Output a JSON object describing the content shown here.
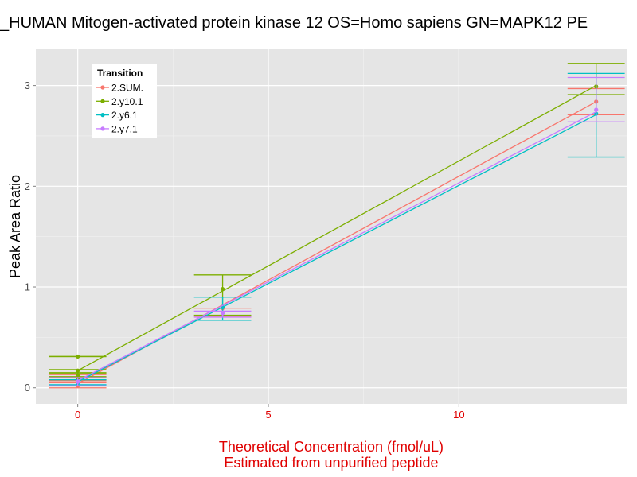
{
  "chart_data": {
    "type": "line",
    "title": "_HUMAN Mitogen-activated protein kinase 12 OS=Homo sapiens GN=MAPK12 PE",
    "xlabel_line1": "Theoretical Concentration (fmol/uL)",
    "xlabel_line2": "Estimated from unpurified peptide",
    "ylabel": "Peak Area Ratio",
    "xlim": [
      -1.1,
      14.4
    ],
    "ylim": [
      -0.16,
      3.36
    ],
    "x_ticks": [
      0,
      5,
      10
    ],
    "x_tick_labels": [
      "0",
      "5",
      "10"
    ],
    "y_ticks": [
      0,
      1,
      2,
      3
    ],
    "y_tick_labels": [
      "0",
      "1",
      "2",
      "3"
    ],
    "grid": true,
    "legend": {
      "title": "Transition",
      "position": "top-left",
      "entries": [
        "2.SUM.",
        "2.y10.1",
        "2.y6.1",
        "2.y7.1"
      ]
    },
    "series": [
      {
        "name": "2.SUM.",
        "color": "#F8766D",
        "fit": [
          [
            0,
            0.04
          ],
          [
            13.6,
            2.84
          ]
        ],
        "points": [
          {
            "x": 0,
            "y": 0.02,
            "ymin": 0.0,
            "ymax": 0.05
          },
          {
            "x": 0,
            "y": 0.1,
            "ymin": 0.07,
            "ymax": 0.13
          },
          {
            "x": 3.8,
            "y": 0.79,
            "ymin": 0.71,
            "ymax": 0.79
          },
          {
            "x": 13.6,
            "y": 2.84,
            "ymin": 2.71,
            "ymax": 2.97
          }
        ]
      },
      {
        "name": "2.y10.1",
        "color": "#7CAE00",
        "fit": [
          [
            0,
            0.17
          ],
          [
            13.6,
            3.0
          ]
        ],
        "points": [
          {
            "x": 0,
            "y": 0.31,
            "ymin": 0.31,
            "ymax": 0.31
          },
          {
            "x": 0,
            "y": 0.17,
            "ymin": 0.14,
            "ymax": 0.18
          },
          {
            "x": 0,
            "y": 0.12,
            "ymin": 0.1,
            "ymax": 0.15
          },
          {
            "x": 0,
            "y": 0.09,
            "ymin": 0.08,
            "ymax": 0.11
          },
          {
            "x": 3.8,
            "y": 0.98,
            "ymin": 0.72,
            "ymax": 1.12
          },
          {
            "x": 13.6,
            "y": 2.99,
            "ymin": 2.91,
            "ymax": 3.22
          }
        ]
      },
      {
        "name": "2.y6.1",
        "color": "#00BFC4",
        "fit": [
          [
            0,
            0.06
          ],
          [
            13.6,
            2.71
          ]
        ],
        "points": [
          {
            "x": 0,
            "y": 0.05,
            "ymin": 0.03,
            "ymax": 0.08
          },
          {
            "x": 3.8,
            "y": 0.8,
            "ymin": 0.67,
            "ymax": 0.9
          },
          {
            "x": 13.6,
            "y": 2.72,
            "ymin": 2.29,
            "ymax": 3.12
          }
        ]
      },
      {
        "name": "2.y7.1",
        "color": "#C77CFF",
        "fit": [
          [
            0,
            0.07
          ],
          [
            13.6,
            2.74
          ]
        ],
        "points": [
          {
            "x": 0,
            "y": 0.06,
            "ymin": 0.02,
            "ymax": 0.1
          },
          {
            "x": 3.8,
            "y": 0.74,
            "ymin": 0.7,
            "ymax": 0.76
          },
          {
            "x": 13.6,
            "y": 2.76,
            "ymin": 2.64,
            "ymax": 3.08
          }
        ]
      }
    ]
  }
}
